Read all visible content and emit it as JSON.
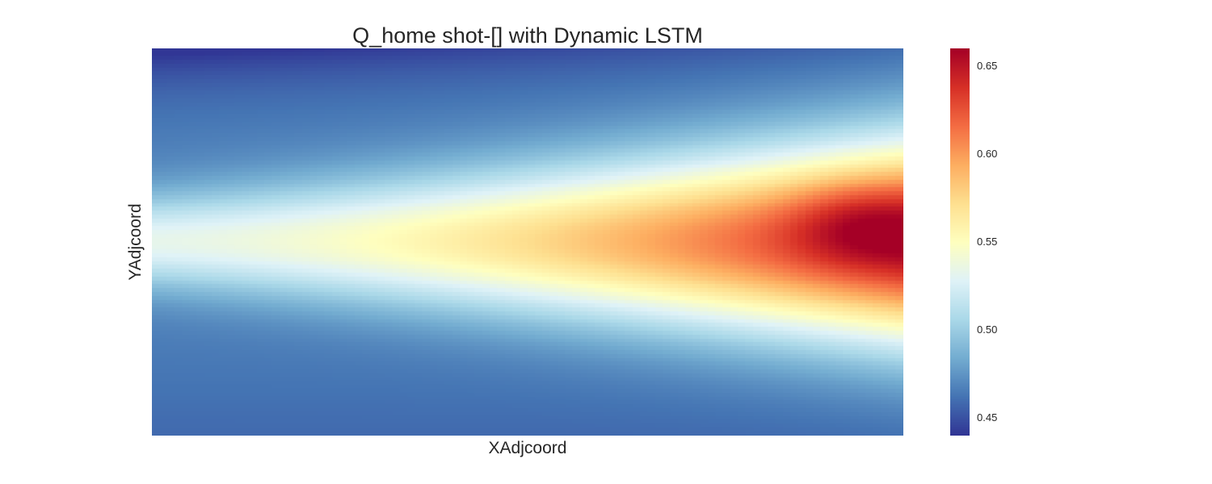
{
  "chart_data": {
    "type": "heatmap",
    "title": "Q_home shot-[] with Dynamic LSTM",
    "xlabel": "XAdjcoord",
    "ylabel": "YAdjcoord",
    "colormap": "RdYlBu_r",
    "colorbar": {
      "range": [
        0.44,
        0.66
      ],
      "ticks": [
        "0.45",
        "0.50",
        "0.55",
        "0.60",
        "0.65"
      ]
    },
    "grid": false,
    "value_summary": {
      "min": 0.44,
      "max": 0.66,
      "peak_region": "right edge, just above vertical center",
      "low_regions": [
        "top-left corner",
        "bottom edge"
      ]
    }
  }
}
